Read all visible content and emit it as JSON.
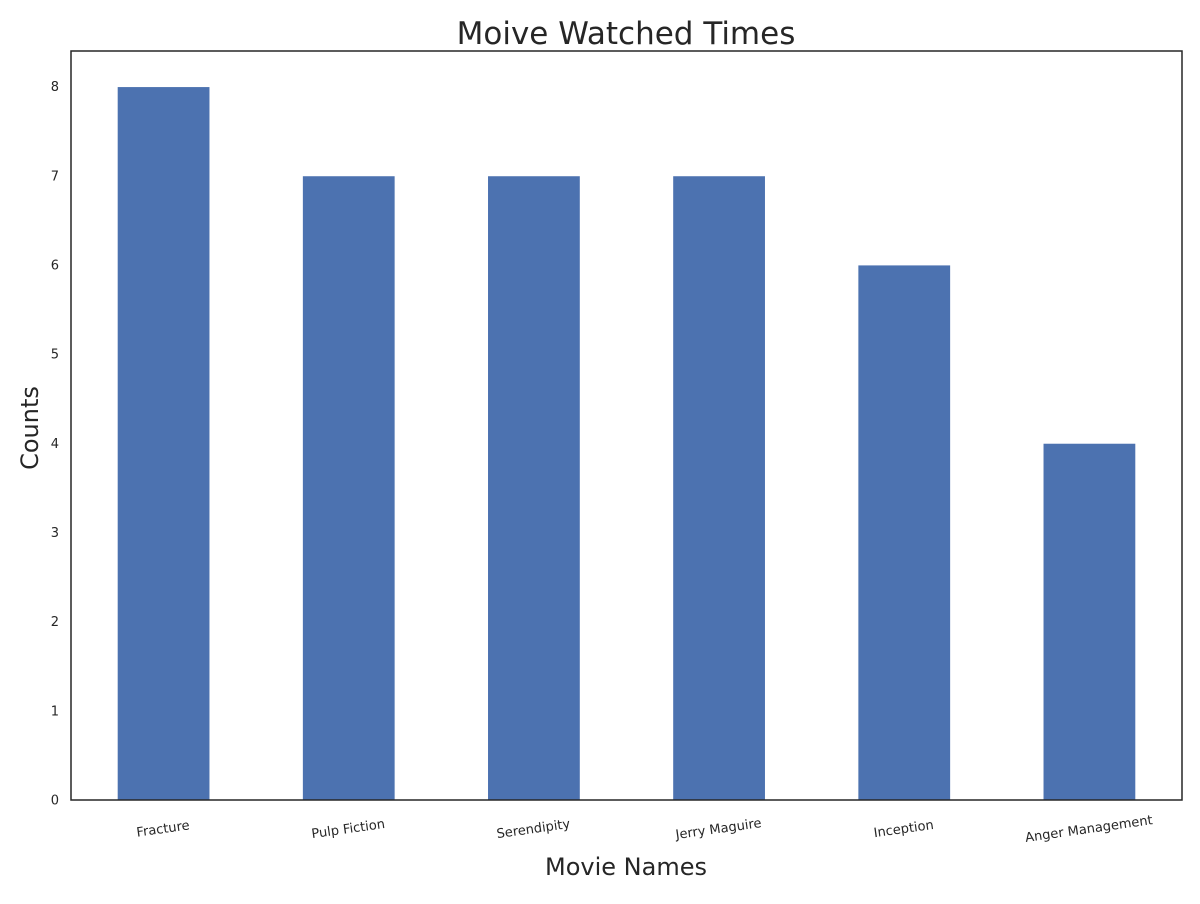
{
  "chart_data": {
    "type": "bar",
    "title": "Moive Watched Times",
    "xlabel": "Movie Names",
    "ylabel": "Counts",
    "categories": [
      "Fracture",
      "Pulp Fiction",
      "Serendipity",
      "Jerry Maguire",
      "Inception",
      "Anger Management"
    ],
    "values": [
      8,
      7,
      7,
      7,
      6,
      4
    ],
    "ylim": [
      0,
      8.4
    ],
    "yticks": [
      "0",
      "1",
      "2",
      "3",
      "4",
      "5",
      "6",
      "7",
      "8"
    ],
    "grid": false,
    "legend": "none",
    "colors": {
      "bar": "#4c72b0",
      "axes": "#262626",
      "text": "#262626",
      "background": "#ffffff"
    }
  }
}
